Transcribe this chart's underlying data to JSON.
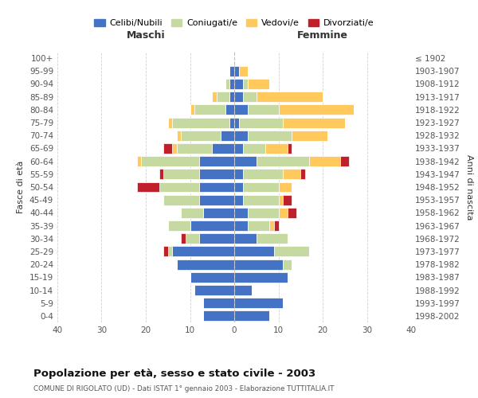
{
  "age_groups": [
    "0-4",
    "5-9",
    "10-14",
    "15-19",
    "20-24",
    "25-29",
    "30-34",
    "35-39",
    "40-44",
    "45-49",
    "50-54",
    "55-59",
    "60-64",
    "65-69",
    "70-74",
    "75-79",
    "80-84",
    "85-89",
    "90-94",
    "95-99",
    "100+"
  ],
  "birth_years": [
    "1998-2002",
    "1993-1997",
    "1988-1992",
    "1983-1987",
    "1978-1982",
    "1973-1977",
    "1968-1972",
    "1963-1967",
    "1958-1962",
    "1953-1957",
    "1948-1952",
    "1943-1947",
    "1938-1942",
    "1933-1937",
    "1928-1932",
    "1923-1927",
    "1918-1922",
    "1913-1917",
    "1908-1912",
    "1903-1907",
    "≤ 1902"
  ],
  "male": {
    "celibi": [
      7,
      7,
      9,
      10,
      13,
      14,
      8,
      10,
      7,
      8,
      8,
      8,
      8,
      5,
      3,
      1,
      2,
      1,
      1,
      1,
      0
    ],
    "coniugati": [
      0,
      0,
      0,
      0,
      0,
      1,
      3,
      5,
      5,
      8,
      9,
      8,
      13,
      8,
      9,
      13,
      7,
      3,
      1,
      0,
      0
    ],
    "vedovi": [
      0,
      0,
      0,
      0,
      0,
      0,
      0,
      0,
      0,
      0,
      0,
      0,
      1,
      1,
      1,
      1,
      1,
      1,
      0,
      0,
      0
    ],
    "divorziati": [
      0,
      0,
      0,
      0,
      0,
      1,
      1,
      0,
      0,
      0,
      5,
      1,
      0,
      2,
      0,
      0,
      0,
      0,
      0,
      0,
      0
    ]
  },
  "female": {
    "nubili": [
      8,
      11,
      4,
      12,
      11,
      9,
      5,
      3,
      3,
      2,
      2,
      2,
      5,
      2,
      3,
      1,
      3,
      2,
      2,
      1,
      0
    ],
    "coniugate": [
      0,
      0,
      0,
      0,
      2,
      8,
      7,
      5,
      7,
      8,
      8,
      9,
      12,
      5,
      10,
      10,
      7,
      3,
      1,
      0,
      0
    ],
    "vedove": [
      0,
      0,
      0,
      0,
      0,
      0,
      0,
      1,
      2,
      1,
      3,
      4,
      7,
      5,
      8,
      14,
      17,
      15,
      5,
      2,
      0
    ],
    "divorziate": [
      0,
      0,
      0,
      0,
      0,
      0,
      0,
      1,
      2,
      2,
      0,
      1,
      2,
      1,
      0,
      0,
      0,
      0,
      0,
      0,
      0
    ]
  },
  "colors": {
    "celibi": "#4472C4",
    "coniugati": "#C5D9A0",
    "vedovi": "#FFC95E",
    "divorziati": "#C0202A"
  },
  "legend_labels": [
    "Celibi/Nubili",
    "Coniugati/e",
    "Vedovi/e",
    "Divorziati/e"
  ],
  "title": "Popolazione per età, sesso e stato civile - 2003",
  "subtitle": "COMUNE DI RIGOLATO (UD) - Dati ISTAT 1° gennaio 2003 - Elaborazione TUTTITALIA.IT",
  "xlabel_left": "Maschi",
  "xlabel_right": "Femmine",
  "ylabel_left": "Fasce di età",
  "ylabel_right": "Anni di nascita",
  "xlim": 40,
  "background_color": "#ffffff",
  "grid_color": "#cccccc"
}
